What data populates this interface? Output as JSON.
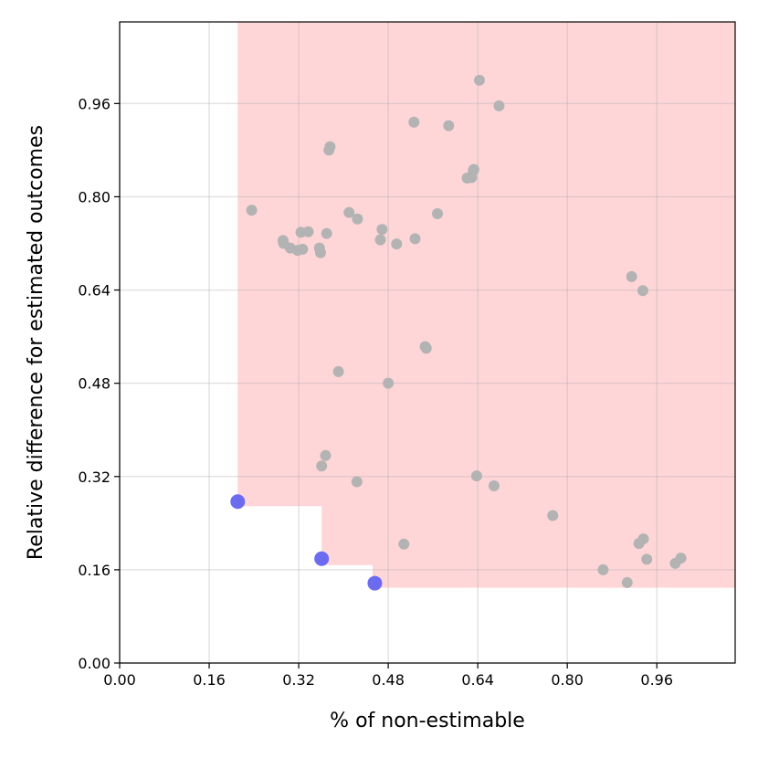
{
  "chart_data": {
    "type": "scatter",
    "title": "",
    "xlabel": "% of non-estimable",
    "ylabel": "Relative difference for estimated outcomes",
    "xlim": [
      0.0,
      1.1
    ],
    "ylim": [
      0.0,
      1.1
    ],
    "xticks": [
      "0.00",
      "0.16",
      "0.32",
      "0.48",
      "0.64",
      "0.80",
      "0.96"
    ],
    "yticks": [
      "0.00",
      "0.16",
      "0.32",
      "0.48",
      "0.64",
      "0.80",
      "0.96"
    ],
    "grid": true,
    "colors": {
      "dominated_region": "#ffd6d8",
      "dominated_points": "#b3b3b3",
      "pareto_points": "#6464f0"
    },
    "dominated_region_steps": [
      {
        "x": 0.211,
        "y_from": 0.269
      },
      {
        "x": 0.361,
        "y_from": 0.168
      },
      {
        "x": 0.452,
        "y_from": 0.129
      }
    ],
    "series": [
      {
        "role": "dominated",
        "points": [
          [
            0.236,
            0.777
          ],
          [
            0.292,
            0.725
          ],
          [
            0.293,
            0.72
          ],
          [
            0.305,
            0.712
          ],
          [
            0.318,
            0.708
          ],
          [
            0.324,
            0.739
          ],
          [
            0.327,
            0.71
          ],
          [
            0.337,
            0.74
          ],
          [
            0.357,
            0.712
          ],
          [
            0.359,
            0.704
          ],
          [
            0.37,
            0.737
          ],
          [
            0.374,
            0.88
          ],
          [
            0.376,
            0.886
          ],
          [
            0.391,
            0.5
          ],
          [
            0.41,
            0.773
          ],
          [
            0.425,
            0.762
          ],
          [
            0.466,
            0.726
          ],
          [
            0.469,
            0.744
          ],
          [
            0.48,
            0.48
          ],
          [
            0.495,
            0.719
          ],
          [
            0.526,
            0.928
          ],
          [
            0.528,
            0.728
          ],
          [
            0.546,
            0.543
          ],
          [
            0.548,
            0.54
          ],
          [
            0.568,
            0.771
          ],
          [
            0.588,
            0.922
          ],
          [
            0.621,
            0.832
          ],
          [
            0.629,
            0.833
          ],
          [
            0.632,
            0.845
          ],
          [
            0.633,
            0.847
          ],
          [
            0.643,
            1.0
          ],
          [
            0.678,
            0.956
          ],
          [
            0.361,
            0.338
          ],
          [
            0.368,
            0.356
          ],
          [
            0.424,
            0.311
          ],
          [
            0.508,
            0.204
          ],
          [
            0.638,
            0.321
          ],
          [
            0.669,
            0.304
          ],
          [
            0.774,
            0.253
          ],
          [
            0.864,
            0.16
          ],
          [
            0.907,
            0.138
          ],
          [
            0.915,
            0.663
          ],
          [
            0.935,
            0.639
          ],
          [
            0.928,
            0.205
          ],
          [
            0.936,
            0.213
          ],
          [
            0.942,
            0.178
          ],
          [
            0.993,
            0.171
          ],
          [
            1.003,
            0.18
          ]
        ]
      },
      {
        "role": "pareto",
        "points": [
          [
            0.211,
            0.277
          ],
          [
            0.361,
            0.179
          ],
          [
            0.456,
            0.137
          ]
        ]
      }
    ]
  }
}
